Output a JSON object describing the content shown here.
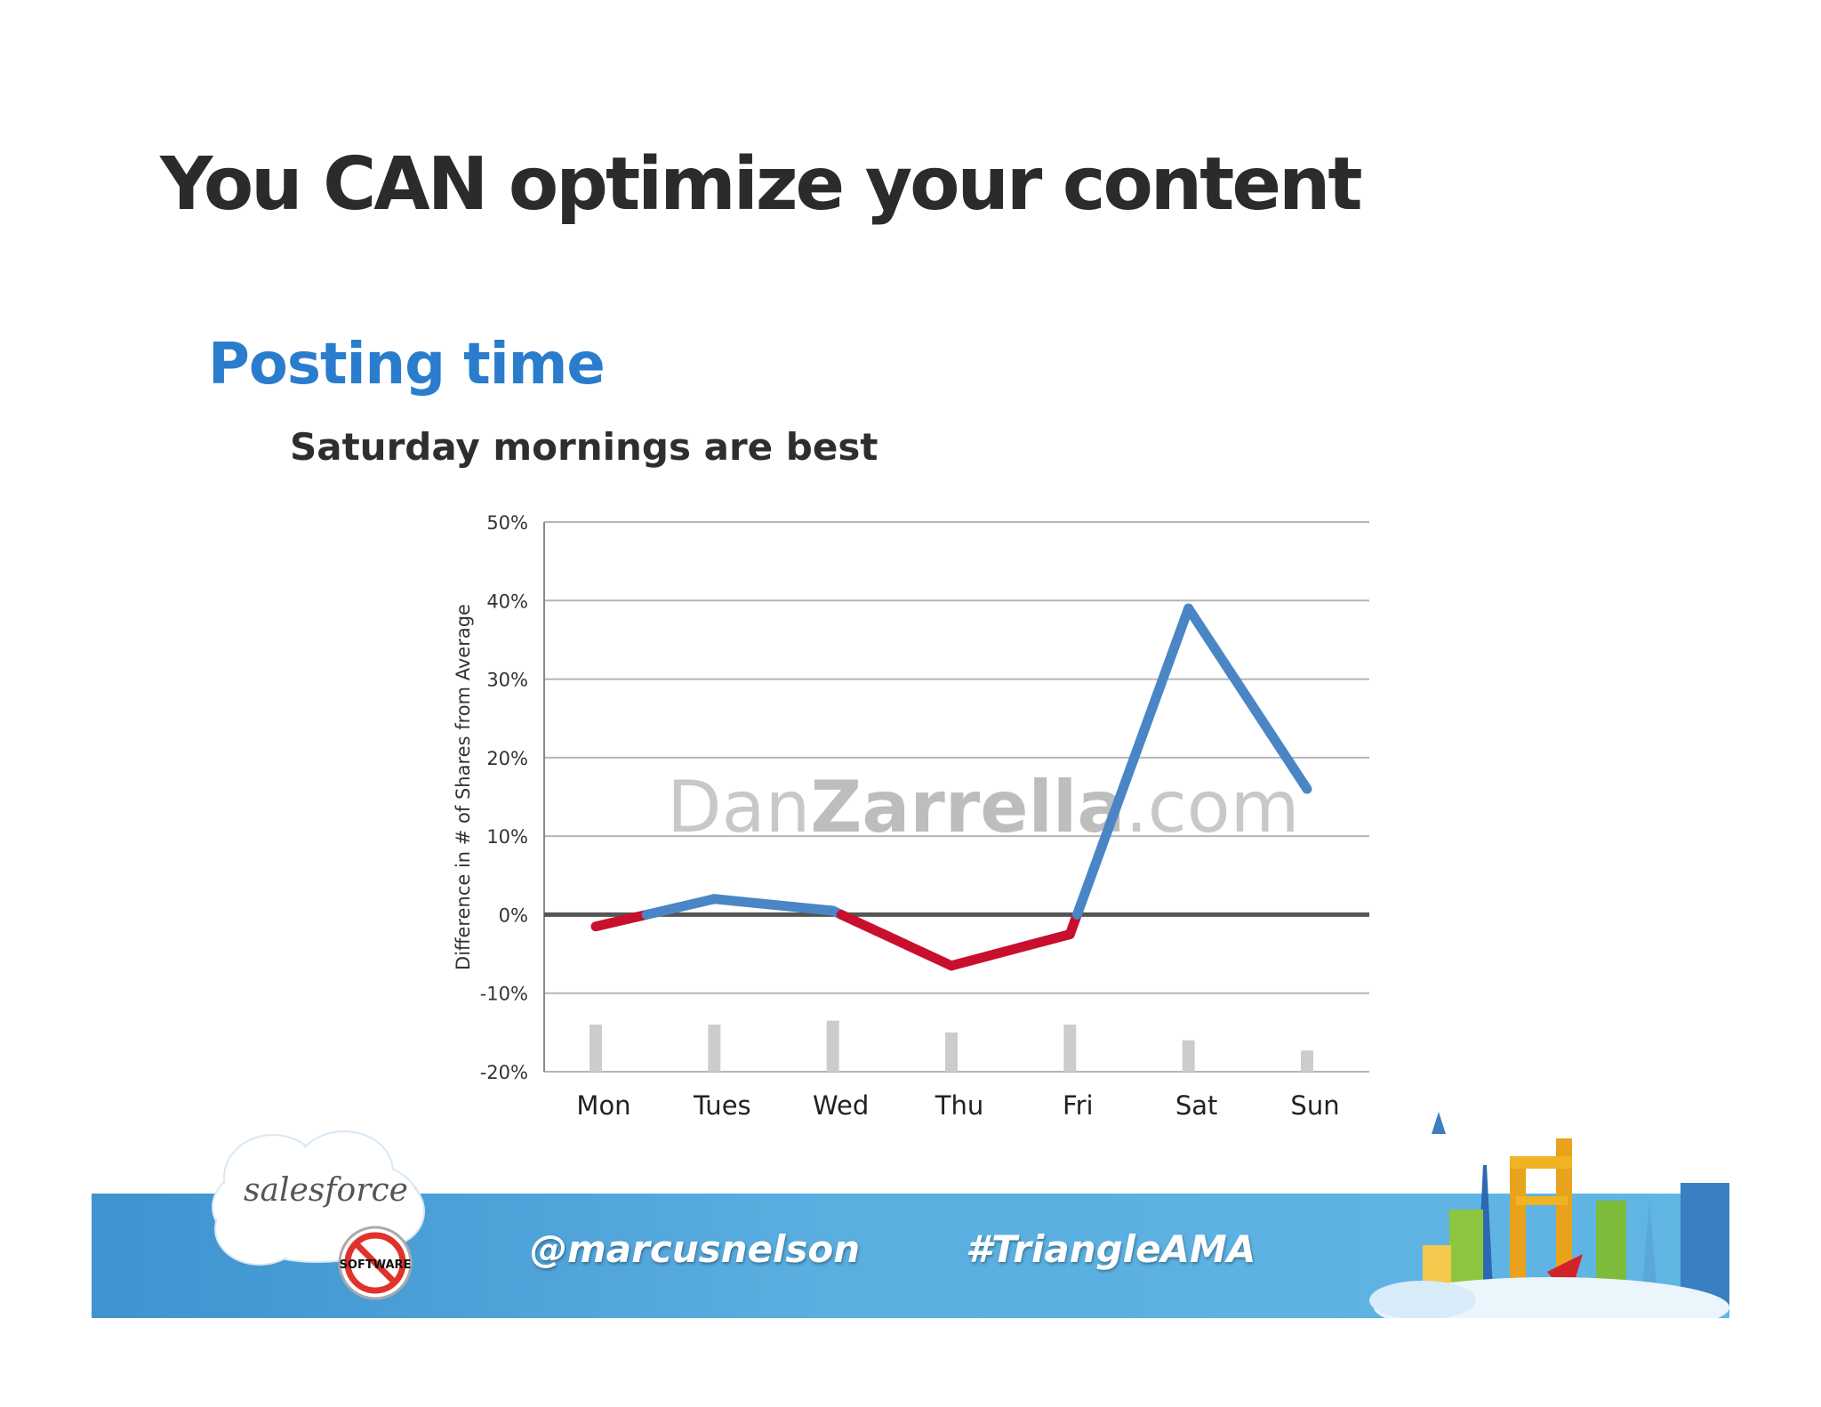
{
  "slide": {
    "title": "You CAN optimize your content",
    "subtitle": "Posting time",
    "tagline": "Saturday mornings are best"
  },
  "chart_data": {
    "type": "line",
    "title": "",
    "xlabel": "",
    "ylabel": "Difference in # of Shares from Average",
    "categories": [
      "Mon",
      "Tues",
      "Wed",
      "Thu",
      "Fri",
      "Sat",
      "Sun"
    ],
    "series": [
      {
        "values": [
          -1.5,
          2,
          0.5,
          -6.5,
          -2.5,
          39,
          16
        ]
      }
    ],
    "volume_bars": [
      6,
      6,
      6.5,
      5,
      6,
      4,
      2.7
    ],
    "ylim": [
      -20,
      50
    ],
    "yticks": [
      50,
      40,
      30,
      20,
      10,
      0,
      -10,
      -20
    ],
    "ytick_labels": [
      "50%",
      "40%",
      "30%",
      "20%",
      "10%",
      "0%",
      "-10%",
      "-20%"
    ],
    "grid": true,
    "watermark": {
      "part1": "Dan",
      "part2": "Zarrella",
      "part3": ".com"
    },
    "colors": {
      "positive": "#4a86c5",
      "negative": "#c8102e",
      "zero_line": "#555555",
      "grid": "#b5b5b5",
      "bars": "#cccccc"
    }
  },
  "footer": {
    "handle": "@marcusnelson",
    "hashtag": "#TriangleAMA",
    "logo_text": "salesforce",
    "badge_text": "SOFTWARE"
  }
}
